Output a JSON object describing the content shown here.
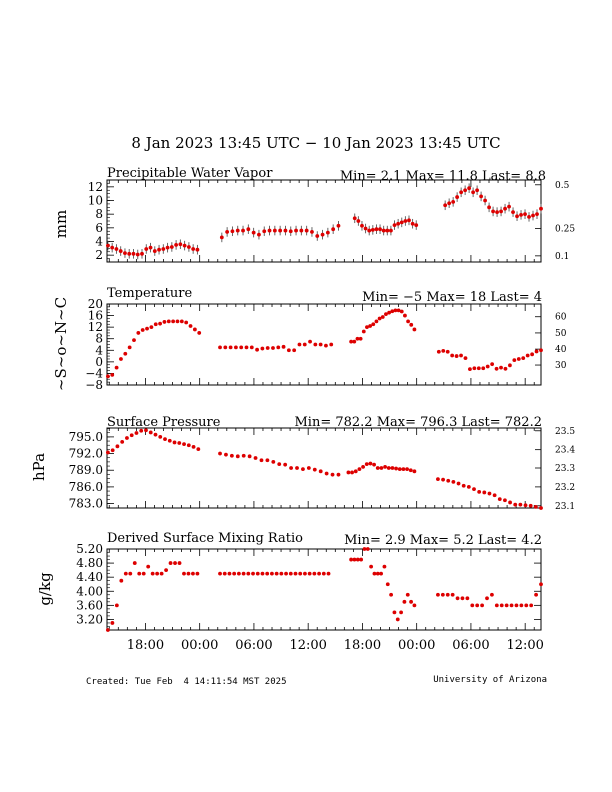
{
  "page": {
    "title": "8 Jan 2023 13:45 UTC − 10 Jan 2023 13:45 UTC",
    "footer_left": "Created: Tue Feb  4 14:11:54 MST 2025",
    "footer_right": "University of Arizona"
  },
  "x_axis": {
    "tick_labels": [
      "18:00",
      "00:00",
      "06:00",
      "12:00",
      "18:00",
      "00:00",
      "06:00",
      "12:00"
    ],
    "tick_hours": [
      4.25,
      10.25,
      16.25,
      22.25,
      28.25,
      34.25,
      40.25,
      46.25
    ],
    "range_hours": [
      0,
      48
    ]
  },
  "colors": {
    "points": "#dd0000",
    "errorbar": "#555555",
    "axes": "#000000"
  },
  "chart_data": [
    {
      "type": "scatter",
      "id": "pwv",
      "title": "Precipitable Water Vapor",
      "stats": "Min= 2.1 Max= 11.8 Last= 8.8",
      "ylabel": "mm",
      "ylim": [
        1,
        13
      ],
      "yticks": [
        2,
        4,
        6,
        8,
        10,
        12
      ],
      "y2_ticks": [
        {
          "label": "0.5",
          "at": 12.3
        },
        {
          "label": "0.25",
          "at": 5.9
        },
        {
          "label": "0.1",
          "at": 1.9
        }
      ],
      "error_bars": true,
      "segments": [
        {
          "x0": 0.1,
          "x1": 10.0,
          "values": [
            3.4,
            3.1,
            2.9,
            2.6,
            2.3,
            2.2,
            2.2,
            2.1,
            2.2,
            2.9,
            3.1,
            2.6,
            2.8,
            2.9,
            3.1,
            3.2,
            3.5,
            3.6,
            3.4,
            3.2,
            2.9,
            2.8
          ]
        },
        {
          "x0": 12.7,
          "x1": 25.6,
          "values": [
            4.6,
            5.4,
            5.5,
            5.6,
            5.6,
            5.8,
            5.3,
            5.0,
            5.5,
            5.6,
            5.6,
            5.6,
            5.6,
            5.5,
            5.6,
            5.6,
            5.6,
            5.4,
            4.8,
            5.0,
            5.3,
            5.8,
            6.3
          ]
        },
        {
          "x0": 27.4,
          "x1": 34.2,
          "values": [
            7.4,
            7.0,
            6.3,
            5.9,
            5.6,
            5.7,
            5.8,
            5.8,
            5.6,
            5.6,
            5.6,
            6.4,
            6.6,
            6.8,
            7.0,
            7.1,
            6.6,
            6.4
          ]
        },
        {
          "x0": 37.4,
          "x1": 48.0,
          "values": [
            9.3,
            9.6,
            9.8,
            10.5,
            11.2,
            11.5,
            11.8,
            11.2,
            11.5,
            10.6,
            10.0,
            9.0,
            8.4,
            8.3,
            8.4,
            8.8,
            9.1,
            8.3,
            7.7,
            7.9,
            8.0,
            7.6,
            7.8,
            8.0,
            8.8
          ]
        }
      ]
    },
    {
      "type": "scatter",
      "id": "temp",
      "title": "Temperature",
      "stats": "Min= −5 Max= 18 Last= 4",
      "ylabel": "~S~o~N~C",
      "ylim": [
        -8,
        20
      ],
      "yticks": [
        -8,
        -4,
        0,
        4,
        8,
        12,
        16,
        20
      ],
      "ytick_labels": [
        "−8",
        "−4",
        "0",
        "4",
        "8",
        "12",
        "16",
        "20"
      ],
      "y2_ticks": [
        {
          "label": "60",
          "at": 15.6
        },
        {
          "label": "50",
          "at": 10.0
        },
        {
          "label": "40",
          "at": 4.4
        },
        {
          "label": "30",
          "at": -1.1
        }
      ],
      "segments": [
        {
          "x0": 0.1,
          "x1": 10.2,
          "values": [
            -5,
            -4.5,
            -2,
            1,
            2.8,
            5,
            7.5,
            10,
            11,
            11.5,
            12,
            13,
            13.2,
            13.8,
            14,
            14,
            14,
            14,
            13.6,
            12.4,
            11.2,
            10
          ]
        },
        {
          "x0": 12.5,
          "x1": 24.8,
          "values": [
            5,
            5,
            5,
            5,
            5,
            5,
            5,
            4.2,
            4.6,
            4.8,
            4.8,
            5,
            5.2,
            4,
            4,
            6,
            6,
            7,
            6,
            6,
            5.6,
            6
          ]
        },
        {
          "x0": 27.0,
          "x1": 34.0,
          "values": [
            7,
            7,
            8,
            8,
            10.5,
            12,
            12.4,
            13,
            14,
            15,
            15.5,
            16.5,
            17,
            17.5,
            17.8,
            17.8,
            17.4,
            16,
            14,
            12.8,
            11.2
          ]
        },
        {
          "x0": 36.7,
          "x1": 48.0,
          "values": [
            3.5,
            3.8,
            3.5,
            2.2,
            2,
            2.2,
            1.3,
            -2.5,
            -2.2,
            -2.2,
            -2.2,
            -1.6,
            -0.8,
            -2.4,
            -2,
            -2.4,
            -1.2,
            0.6,
            1.0,
            1.3,
            2.2,
            2.6,
            3.6,
            4
          ]
        }
      ]
    },
    {
      "type": "scatter",
      "id": "press",
      "title": "Surface Pressure",
      "stats": "Min= 782.2 Max= 796.3 Last= 782.2",
      "ylabel": "hPa",
      "ylim": [
        782.2,
        796.6
      ],
      "yticks": [
        783.0,
        786.0,
        789.0,
        792.0,
        795.0
      ],
      "ytick_labels": [
        "783.0",
        "786.0",
        "789.0",
        "792.0",
        "795.0"
      ],
      "y2_ticks": [
        {
          "label": "23.5",
          "at": 796.1
        },
        {
          "label": "23.4",
          "at": 792.7
        },
        {
          "label": "23.3",
          "at": 789.4
        },
        {
          "label": "23.2",
          "at": 786.0
        },
        {
          "label": "23.1",
          "at": 782.6
        }
      ],
      "segments": [
        {
          "x0": 0.1,
          "x1": 10.1,
          "values": [
            792.2,
            792.6,
            793.3,
            794.1,
            794.8,
            795.3,
            795.7,
            796.1,
            796.2,
            795.8,
            795.4,
            795.0,
            794.6,
            794.3,
            794.0,
            793.9,
            793.7,
            793.5,
            793.2,
            792.8
          ]
        },
        {
          "x0": 12.5,
          "x1": 25.6,
          "values": [
            792.0,
            791.8,
            791.6,
            791.5,
            791.6,
            791.5,
            791.2,
            790.8,
            790.8,
            790.5,
            790.1,
            790.0,
            789.4,
            789.4,
            789.2,
            789.4,
            789.1,
            788.8,
            788.4,
            788.2,
            788.2
          ]
        },
        {
          "x0": 26.7,
          "x1": 34.0,
          "values": [
            788.6,
            788.6,
            788.8,
            789.2,
            789.6,
            790.1,
            790.2,
            790.0,
            789.4,
            789.4,
            789.6,
            789.4,
            789.4,
            789.3,
            789.2,
            789.2,
            789.2,
            789.0,
            788.8
          ]
        },
        {
          "x0": 36.6,
          "x1": 48.0,
          "values": [
            787.4,
            787.3,
            787.1,
            786.9,
            786.6,
            786.2,
            786.0,
            785.6,
            785.1,
            785.0,
            784.8,
            784.5,
            783.8,
            783.6,
            783.2,
            782.8,
            782.8,
            782.7,
            782.6,
            782.4,
            782.2
          ]
        }
      ]
    },
    {
      "type": "scatter",
      "id": "mix",
      "title": "Derived Surface Mixing Ratio",
      "stats": "Min= 2.9 Max= 5.2 Last= 4.2",
      "ylabel": "g/kg",
      "ylim": [
        2.9,
        5.2
      ],
      "yticks": [
        3.2,
        3.6,
        4.0,
        4.4,
        4.8,
        5.2
      ],
      "ytick_labels": [
        "3.20",
        "3.60",
        "4.00",
        "4.40",
        "4.80",
        "5.20"
      ],
      "segments": [
        {
          "x0": 0.1,
          "x1": 10.0,
          "values": [
            2.9,
            3.1,
            3.6,
            4.3,
            4.5,
            4.5,
            4.8,
            4.5,
            4.5,
            4.7,
            4.5,
            4.5,
            4.5,
            4.6,
            4.8,
            4.8,
            4.8,
            4.5,
            4.5,
            4.5,
            4.5
          ]
        },
        {
          "x0": 12.5,
          "x1": 24.5,
          "values": [
            4.5,
            4.5,
            4.5,
            4.5,
            4.5,
            4.5,
            4.5,
            4.5,
            4.5,
            4.5,
            4.5,
            4.5,
            4.5,
            4.5,
            4.5,
            4.5,
            4.5,
            4.5,
            4.5,
            4.5,
            4.5,
            4.5,
            4.5,
            4.5
          ]
        },
        {
          "x0": 27.0,
          "x1": 34.0,
          "values": [
            4.9,
            4.9,
            4.9,
            4.9,
            5.2,
            5.2,
            4.7,
            4.5,
            4.5,
            4.5,
            4.7,
            4.2,
            3.9,
            3.4,
            3.2,
            3.4,
            3.7,
            3.9,
            3.7,
            3.6
          ]
        },
        {
          "x0": 36.6,
          "x1": 48.0,
          "values": [
            3.9,
            3.9,
            3.9,
            3.9,
            3.8,
            3.8,
            3.8,
            3.6,
            3.6,
            3.6,
            3.8,
            3.9,
            3.6,
            3.6,
            3.6,
            3.6,
            3.6,
            3.6,
            3.6,
            3.6,
            3.9,
            4.2
          ]
        }
      ]
    }
  ]
}
